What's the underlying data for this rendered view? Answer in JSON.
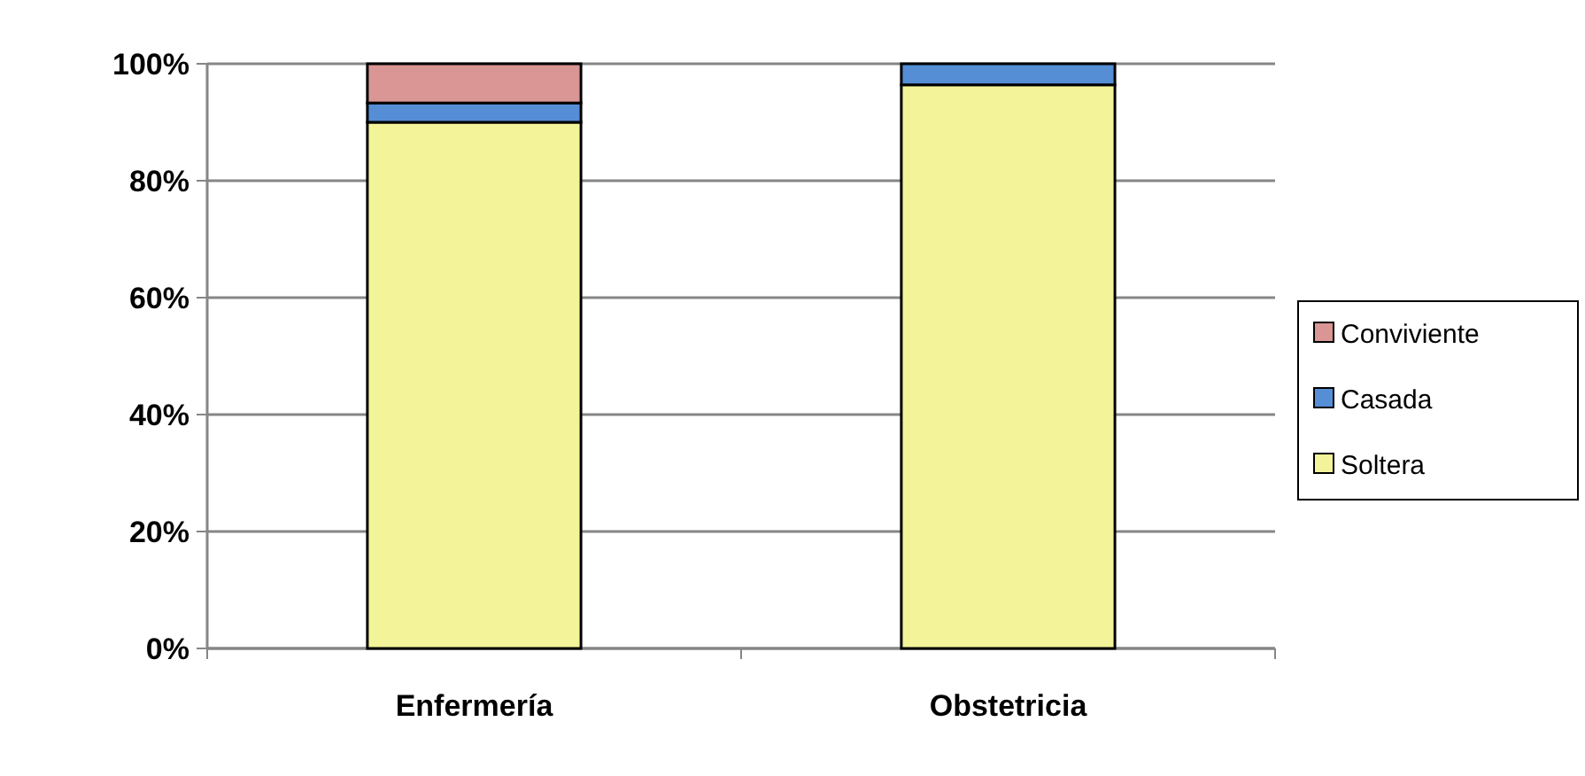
{
  "chart_data": {
    "type": "bar",
    "stacked": true,
    "categories": [
      "Enfermería",
      "Obstetricia"
    ],
    "series": [
      {
        "name": "Soltera",
        "color": "#f3f399",
        "values": [
          90,
          96.4
        ]
      },
      {
        "name": "Casada",
        "color": "#558ed5",
        "values": [
          3.3,
          3.6
        ]
      },
      {
        "name": "Conviviente",
        "color": "#d99694",
        "values": [
          6.7,
          0
        ]
      }
    ],
    "ylim": [
      0,
      100
    ],
    "yticks": [
      {
        "value": 0,
        "label": "0%"
      },
      {
        "value": 20,
        "label": "20%"
      },
      {
        "value": 40,
        "label": "40%"
      },
      {
        "value": 60,
        "label": "60%"
      },
      {
        "value": 80,
        "label": "80%"
      },
      {
        "value": 100,
        "label": "100%"
      }
    ],
    "grid": "y",
    "legend": "right"
  }
}
